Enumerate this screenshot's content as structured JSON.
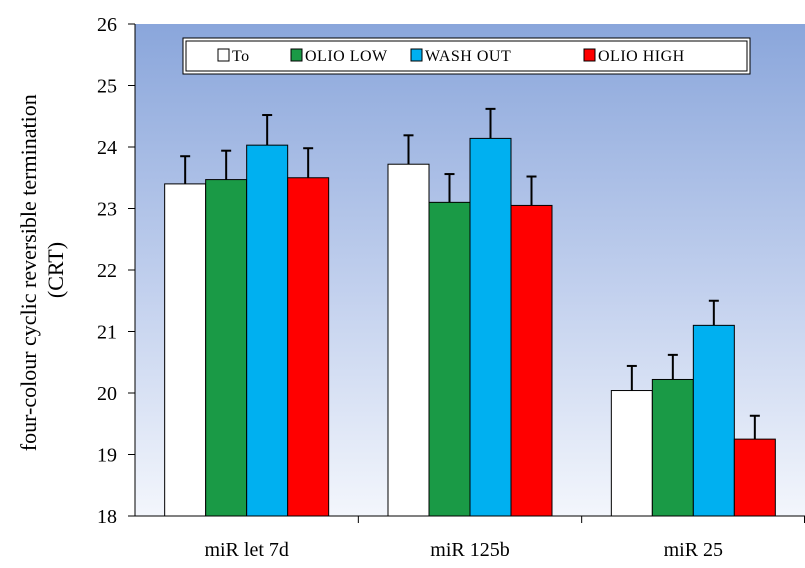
{
  "chart_data": {
    "type": "bar",
    "ylabel_lines": [
      "four-colour cyclic reversible termination",
      "(CRT)"
    ],
    "xlabel": "",
    "ylim": [
      18,
      26
    ],
    "yticks": [
      18,
      19,
      20,
      21,
      22,
      23,
      24,
      25,
      26
    ],
    "categories": [
      "miR let 7d",
      "miR 125b",
      "miR 25"
    ],
    "legend_position": "top",
    "grid": false,
    "series": [
      {
        "name": "To",
        "color": "#ffffff",
        "values": [
          23.4,
          23.72,
          20.04
        ],
        "errors": [
          0.45,
          0.47,
          0.4
        ]
      },
      {
        "name": "OLIO LOW",
        "color": "#1a9a46",
        "values": [
          23.47,
          23.1,
          20.22
        ],
        "errors": [
          0.47,
          0.46,
          0.4
        ]
      },
      {
        "name": "WASH OUT",
        "color": "#00b0f0",
        "values": [
          24.03,
          24.14,
          21.1
        ],
        "errors": [
          0.49,
          0.48,
          0.4
        ]
      },
      {
        "name": "OLIO HIGH",
        "color": "#ff0000",
        "values": [
          23.5,
          23.05,
          19.25
        ],
        "errors": [
          0.48,
          0.47,
          0.38
        ]
      }
    ]
  }
}
